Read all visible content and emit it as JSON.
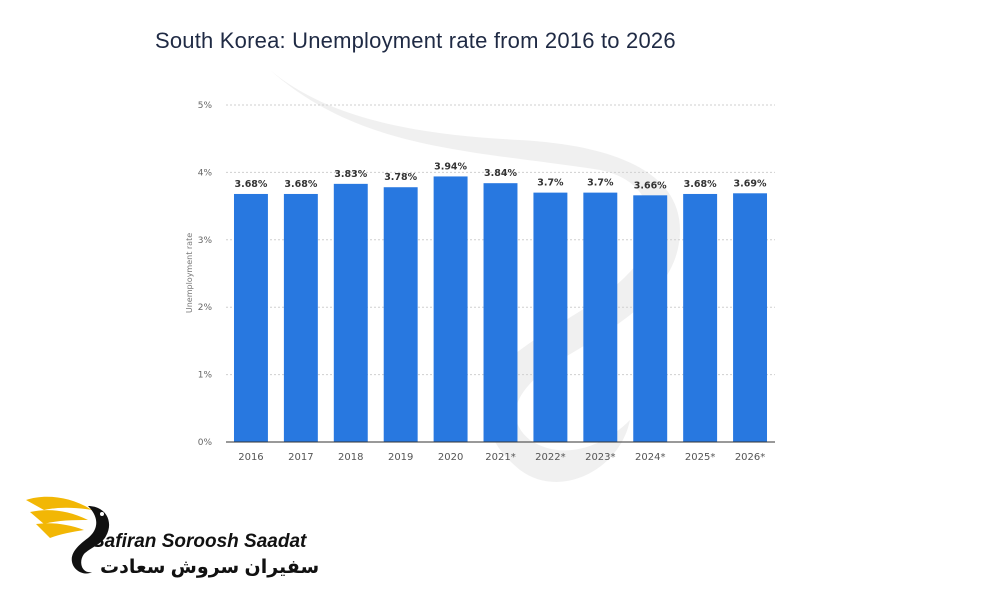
{
  "chart_data": {
    "type": "bar",
    "title": "South Korea: Unemployment rate from 2016 to 2026",
    "ylabel": "Unemployment rate",
    "xlabel": "",
    "categories": [
      "2016",
      "2017",
      "2018",
      "2019",
      "2020",
      "2021*",
      "2022*",
      "2023*",
      "2024*",
      "2025*",
      "2026*"
    ],
    "values": [
      3.68,
      3.68,
      3.83,
      3.78,
      3.94,
      3.84,
      3.7,
      3.7,
      3.66,
      3.68,
      3.69
    ],
    "value_labels": [
      "3.68%",
      "3.68%",
      "3.83%",
      "3.78%",
      "3.94%",
      "3.84%",
      "3.7%",
      "3.7%",
      "3.66%",
      "3.68%",
      "3.69%"
    ],
    "yticks": [
      0,
      1,
      2,
      3,
      4,
      5
    ],
    "ytick_labels": [
      "0%",
      "1%",
      "2%",
      "3%",
      "4%",
      "5%"
    ],
    "ylim": [
      0,
      5
    ],
    "grid": true,
    "bar_color": "#2878e0"
  },
  "logo": {
    "name_en": "Safiran Soroosh Saadat",
    "name_fa": "سفیران سروش سعادت",
    "accent_color": "#f2b705"
  }
}
